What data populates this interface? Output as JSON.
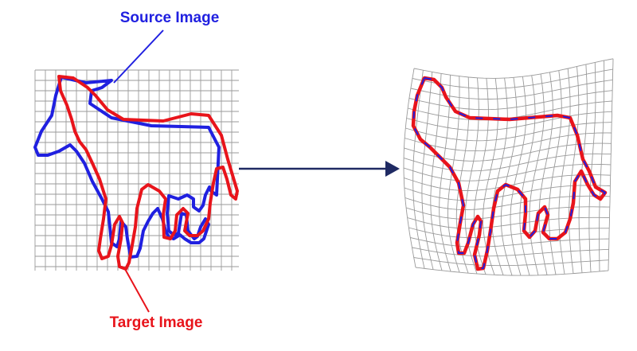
{
  "labels": {
    "source": "Source Image",
    "target": "Target Image"
  },
  "colors": {
    "source": "#2020e0",
    "target": "#e8141b",
    "grid": "#9a9a9a",
    "arrow": "#1f2a63"
  },
  "panels": {
    "left": {
      "content": "overlaid-horse-outlines-on-regular-grid"
    },
    "right": {
      "content": "aligned-horse-outlines-on-warped-grid"
    }
  }
}
